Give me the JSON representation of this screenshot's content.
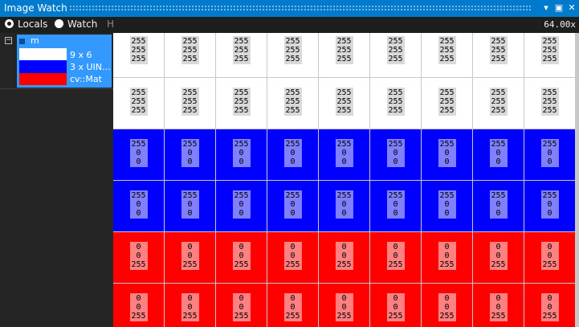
{
  "window": {
    "title": "Image Watch",
    "buttons": [
      "▾",
      "▣",
      "✕"
    ]
  },
  "toolbar": {
    "modes": [
      {
        "label": "Locals",
        "selected": true
      },
      {
        "label": "Watch",
        "selected": false
      }
    ],
    "splitter": "H",
    "zoom": "64.00x"
  },
  "locals": {
    "expander": "⊟",
    "items": [
      {
        "name": "m",
        "size": "9 x 6",
        "channels": "3 x UIN...",
        "type": "cv::Mat",
        "thumbnail_colors": [
          "#ffffff",
          "#0000ff",
          "#ff0000"
        ]
      }
    ]
  },
  "image": {
    "cols": 9,
    "rows": [
      {
        "color": "#ffffff",
        "cls": "w",
        "values": [
          "255",
          "255",
          "255"
        ]
      },
      {
        "color": "#ffffff",
        "cls": "w",
        "values": [
          "255",
          "255",
          "255"
        ]
      },
      {
        "color": "#0000ff",
        "cls": "b",
        "values": [
          "255",
          "0",
          "0"
        ]
      },
      {
        "color": "#0000ff",
        "cls": "b",
        "values": [
          "255",
          "0",
          "0"
        ]
      },
      {
        "color": "#ff0000",
        "cls": "r",
        "values": [
          "0",
          "0",
          "255"
        ]
      },
      {
        "color": "#ff0000",
        "cls": "r",
        "values": [
          "0",
          "0",
          "255"
        ]
      }
    ]
  }
}
